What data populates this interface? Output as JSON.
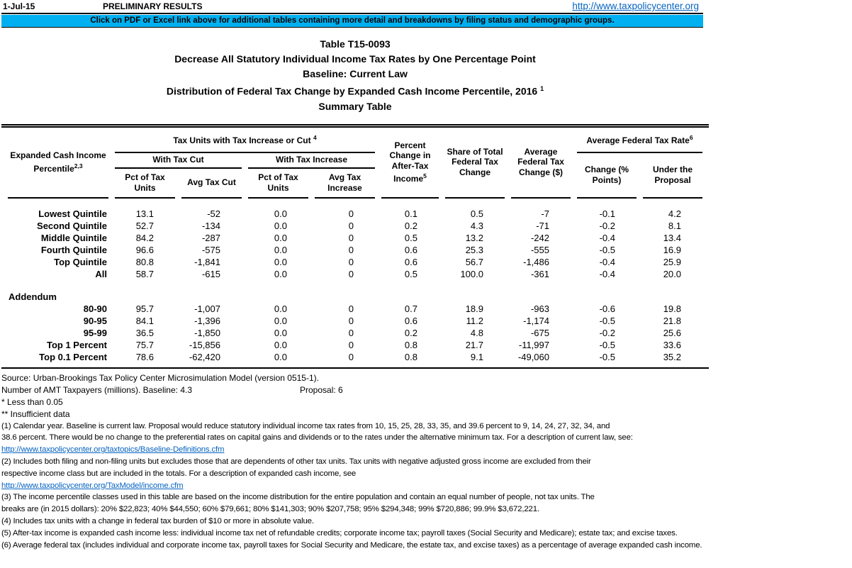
{
  "topbar": {
    "date": "1-Jul-15",
    "status": "PRELIMINARY RESULTS",
    "link": "http://www.taxpolicycenter.org"
  },
  "banner": {
    "text": "Click on PDF or Excel link above for additional tables containing more detail and breakdowns by filing status and demographic groups.",
    "bg_color": "#00B0F0"
  },
  "title": {
    "line1": "Table T15-0093",
    "line2": "Decrease All Statutory Individual Income Tax Rates by One Percentage Point",
    "line3": "Baseline: Current Law",
    "line4": "Distribution of Federal Tax Change by Expanded Cash Income Percentile, 2016",
    "line4_sup": "1",
    "line5": "Summary Table"
  },
  "table": {
    "header": {
      "col0": "Expanded Cash Income Percentile",
      "col0_sup": "2,3",
      "group_tax_units": "Tax Units with Tax Increase or Cut",
      "group_tax_units_sup": "4",
      "with_tax_cut": "With Tax Cut",
      "with_tax_increase": "With Tax Increase",
      "pct_units_cut": "Pct of Tax Units",
      "avg_tax_cut": "Avg Tax Cut",
      "pct_units_inc": "Pct of Tax Units",
      "avg_tax_increase": "Avg Tax Increase",
      "pct_change_atincome": "Percent Change in After-Tax Income",
      "pct_change_atincome_sup": "5",
      "share_total": "Share of Total Federal Tax Change",
      "avg_fed_change": "Average Federal Tax Change ($)",
      "group_avg_rate": "Average Federal Tax Rate",
      "group_avg_rate_sup": "6",
      "rate_change": "Change (% Points)",
      "rate_under": "Under the Proposal"
    },
    "rows": [
      {
        "type": "data",
        "label": "Lowest Quintile",
        "values": [
          "13.1",
          "-52",
          "0.0",
          "0",
          "0.1",
          "0.5",
          "-7",
          "-0.1",
          "4.2"
        ]
      },
      {
        "type": "data",
        "label": "Second Quintile",
        "values": [
          "52.7",
          "-134",
          "0.0",
          "0",
          "0.2",
          "4.3",
          "-71",
          "-0.2",
          "8.1"
        ]
      },
      {
        "type": "data",
        "label": "Middle Quintile",
        "values": [
          "84.2",
          "-287",
          "0.0",
          "0",
          "0.5",
          "13.2",
          "-242",
          "-0.4",
          "13.4"
        ]
      },
      {
        "type": "data",
        "label": "Fourth Quintile",
        "values": [
          "96.6",
          "-575",
          "0.0",
          "0",
          "0.6",
          "25.3",
          "-555",
          "-0.5",
          "16.9"
        ]
      },
      {
        "type": "data",
        "label": "Top Quintile",
        "values": [
          "80.8",
          "-1,841",
          "0.0",
          "0",
          "0.6",
          "56.7",
          "-1,486",
          "-0.4",
          "25.9"
        ]
      },
      {
        "type": "data",
        "label": "All",
        "values": [
          "58.7",
          "-615",
          "0.0",
          "0",
          "0.5",
          "100.0",
          "-361",
          "-0.4",
          "20.0"
        ]
      },
      {
        "type": "spacer"
      },
      {
        "type": "section",
        "label": "Addendum"
      },
      {
        "type": "data",
        "label": "80-90",
        "values": [
          "95.7",
          "-1,007",
          "0.0",
          "0",
          "0.7",
          "18.9",
          "-963",
          "-0.6",
          "19.8"
        ]
      },
      {
        "type": "data",
        "label": "90-95",
        "values": [
          "84.1",
          "-1,396",
          "0.0",
          "0",
          "0.6",
          "11.2",
          "-1,174",
          "-0.5",
          "21.8"
        ]
      },
      {
        "type": "data",
        "label": "95-99",
        "values": [
          "36.5",
          "-1,850",
          "0.0",
          "0",
          "0.2",
          "4.8",
          "-675",
          "-0.2",
          "25.6"
        ]
      },
      {
        "type": "data",
        "label": "Top 1 Percent",
        "values": [
          "75.7",
          "-15,856",
          "0.0",
          "0",
          "0.8",
          "21.7",
          "-11,997",
          "-0.5",
          "33.6"
        ]
      },
      {
        "type": "data",
        "label": "Top 0.1 Percent",
        "values": [
          "78.6",
          "-62,420",
          "0.0",
          "0",
          "0.8",
          "9.1",
          "-49,060",
          "-0.5",
          "35.2"
        ]
      }
    ]
  },
  "footer": {
    "source": "Source: Urban-Brookings Tax Policy Center Microsimulation Model (version 0515-1).",
    "amt_line": "Number of AMT Taxpayers (millions).  Baseline: 4.3",
    "amt_proposal": "Proposal: 6",
    "star1": "* Less than 0.05",
    "star2": "** Insufficient data",
    "note1_l1": "(1) Calendar year. Baseline is current law. Proposal would reduce statutory individual income tax rates from 10, 15, 25, 28, 33, 35, and 39.6 percent to 9, 14, 24, 27, 32, 34, and",
    "note1_l2": "38.6 percent. There would be no change to the preferential rates on capital gains and dividends or to the rates under the alternative minimum tax. For a description of current law, see:",
    "link1": "http://www.taxpolicycenter.org/taxtopics/Baseline-Definitions.cfm",
    "note2_l1": "(2) Includes both filing and non-filing units but excludes those that are dependents of other tax units. Tax units with negative adjusted gross income are excluded from their",
    "note2_l2": "respective income class but are included in the totals. For a description of expanded cash income, see",
    "link2": "http://www.taxpolicycenter.org/TaxModel/income.cfm",
    "note3_l1": "(3) The income percentile classes used in this table are based on the income distribution for the entire population and contain an equal number of people, not tax units. The",
    "note3_l2": "breaks are (in 2015 dollars): 20% $22,823; 40% $44,550; 60% $79,661; 80% $141,303; 90% $207,758; 95% $294,348; 99% $720,886; 99.9% $3,672,221.",
    "note4": "(4) Includes tax units with a change in federal tax burden of $10 or more in absolute value.",
    "note5": "(5) After-tax income is expanded cash income less: individual income tax net of refundable credits; corporate income tax; payroll taxes (Social Security and Medicare); estate tax; and excise taxes.",
    "note6": "(6) Average federal tax (includes individual and corporate income tax, payroll taxes for Social Security and Medicare, the estate tax, and excise taxes) as a percentage of average expanded cash income."
  }
}
